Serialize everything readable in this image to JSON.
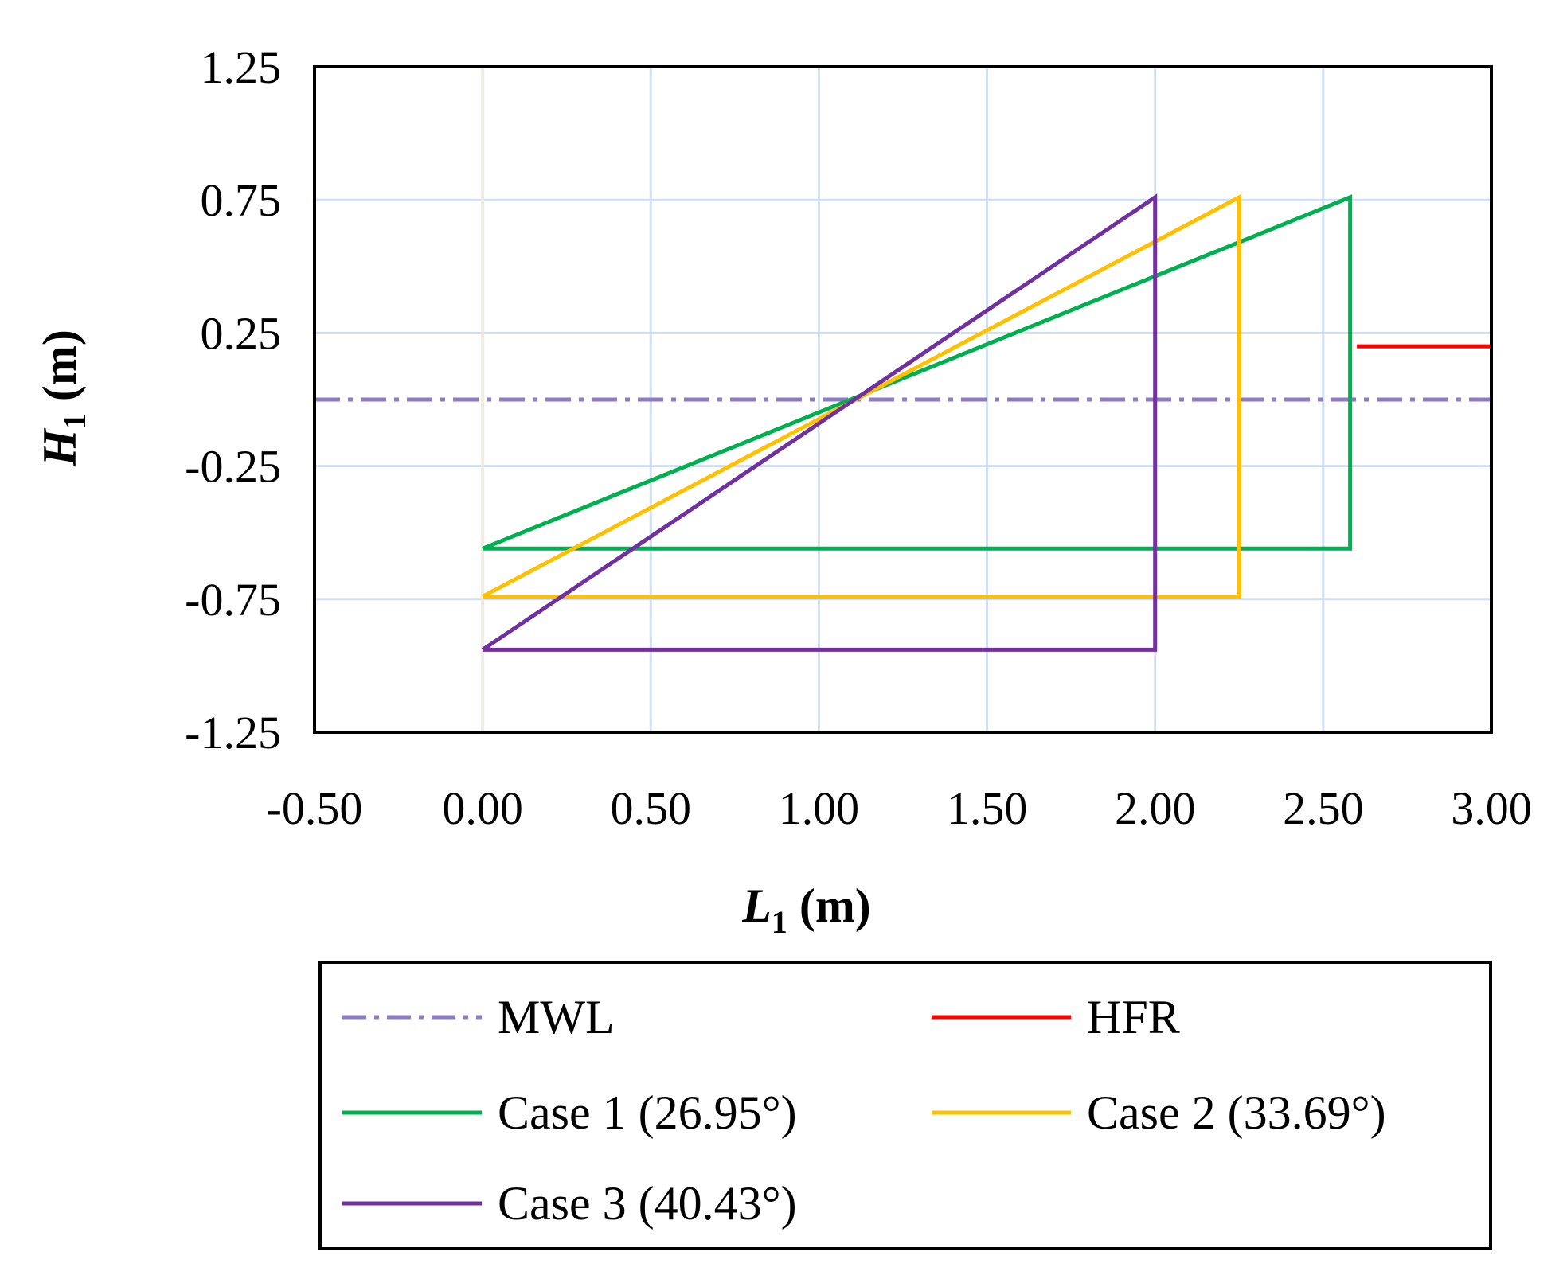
{
  "chart_data": {
    "type": "line",
    "title": "",
    "xlabel": {
      "main": "L",
      "sub": "1",
      "unit": " (m)"
    },
    "ylabel": {
      "main": "H",
      "sub": "1",
      "unit": " (m)"
    },
    "xlim": [
      -0.5,
      3.0
    ],
    "ylim": [
      -1.25,
      1.25
    ],
    "xticks": [
      "-0.50",
      "0.00",
      "0.50",
      "1.00",
      "1.50",
      "2.00",
      "2.50",
      "3.00"
    ],
    "xtick_values": [
      -0.5,
      0.0,
      0.5,
      1.0,
      1.5,
      2.0,
      2.5,
      3.0
    ],
    "yticks": [
      "1.25",
      "0.75",
      "0.25",
      "-0.25",
      "-0.75",
      "-1.25"
    ],
    "ytick_values": [
      1.25,
      0.75,
      0.25,
      -0.25,
      -0.75,
      -1.25
    ],
    "grid": true,
    "legend_position": "bottom",
    "series": [
      {
        "name": "MWL",
        "color": "#8e7cc3",
        "style": "dashdot",
        "x": [
          -0.5,
          3.0
        ],
        "y": [
          0.0,
          0.0
        ]
      },
      {
        "name": "HFR",
        "color": "#ff0000",
        "style": "solid",
        "x": [
          2.6,
          3.0
        ],
        "y": [
          0.2,
          0.2
        ]
      },
      {
        "name": "Case 1 (26.95°)",
        "color": "#00b050",
        "style": "solid",
        "x": [
          0.0,
          2.58,
          2.58,
          0.0
        ],
        "y": [
          -0.56,
          0.76,
          -0.56,
          -0.56
        ]
      },
      {
        "name": "Case 2 (33.69°)",
        "color": "#ffc000",
        "style": "solid",
        "x": [
          0.0,
          2.25,
          2.25,
          0.0
        ],
        "y": [
          -0.74,
          0.76,
          -0.74,
          -0.74
        ]
      },
      {
        "name": "Case 3 (40.43°)",
        "color": "#7030a0",
        "style": "solid",
        "x": [
          0.0,
          2.0,
          2.0,
          0.0
        ],
        "y": [
          -0.94,
          0.76,
          -0.94,
          -0.94
        ]
      }
    ],
    "vertical_reference": {
      "x": 0.0,
      "color": "#eeece1"
    }
  },
  "colors": {
    "grid": "#d2e1f1",
    "frame": "#000000"
  }
}
